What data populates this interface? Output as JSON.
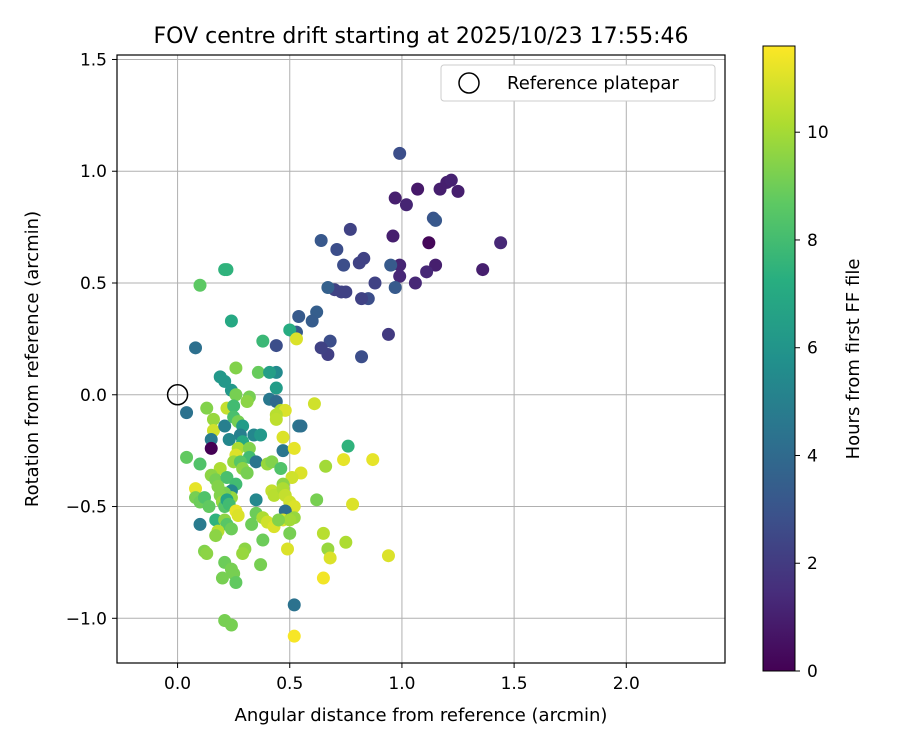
{
  "chart_data": {
    "type": "scatter",
    "title": "FOV centre drift starting at 2025/10/23 17:55:46",
    "xlabel": "Angular distance from reference (arcmin)",
    "ylabel": "Rotation from reference (arcmin)",
    "xlim": [
      -0.27,
      2.44
    ],
    "ylim": [
      -1.2,
      1.52
    ],
    "xticks": [
      0.0,
      0.5,
      1.0,
      1.5,
      2.0
    ],
    "xtick_labels": [
      "0.0",
      "0.5",
      "1.0",
      "1.5",
      "2.0"
    ],
    "yticks": [
      -1.0,
      -0.5,
      0.0,
      0.5,
      1.0,
      1.5
    ],
    "ytick_labels": [
      "−1.0",
      "−0.5",
      "0.0",
      "0.5",
      "1.0",
      "1.5"
    ],
    "grid": true,
    "legend": {
      "position": "top-right",
      "label": "Reference platepar"
    },
    "reference_point": {
      "x": 0.0,
      "y": 0.0
    },
    "colorbar": {
      "label": "Hours from first FF file",
      "colormap": "viridis",
      "range": [
        0,
        11.6
      ],
      "ticks": [
        0,
        2,
        4,
        6,
        8,
        10
      ],
      "tick_labels": [
        "0",
        "2",
        "4",
        "6",
        "8",
        "10"
      ]
    },
    "points": [
      [
        0.99,
        1.08,
        2.8
      ],
      [
        0.97,
        0.88,
        1.0
      ],
      [
        1.02,
        0.85,
        1.2
      ],
      [
        1.07,
        0.92,
        0.8
      ],
      [
        1.14,
        0.79,
        3.1
      ],
      [
        1.15,
        0.78,
        3.2
      ],
      [
        1.17,
        0.92,
        1.0
      ],
      [
        1.2,
        0.95,
        1.0
      ],
      [
        1.22,
        0.96,
        1.1
      ],
      [
        1.25,
        0.91,
        1.0
      ],
      [
        1.44,
        0.68,
        1.3
      ],
      [
        1.36,
        0.56,
        1.0
      ],
      [
        1.15,
        0.58,
        1.0
      ],
      [
        1.11,
        0.55,
        1.3
      ],
      [
        1.06,
        0.5,
        1.3
      ],
      [
        1.12,
        0.68,
        0.2
      ],
      [
        0.96,
        0.71,
        1.0
      ],
      [
        0.99,
        0.58,
        1.2
      ],
      [
        0.99,
        0.53,
        1.3
      ],
      [
        0.97,
        0.48,
        3.3
      ],
      [
        0.95,
        0.58,
        3.3
      ],
      [
        0.94,
        0.27,
        2.0
      ],
      [
        0.88,
        0.5,
        2.3
      ],
      [
        0.85,
        0.43,
        2.8
      ],
      [
        0.83,
        0.61,
        2.3
      ],
      [
        0.81,
        0.59,
        2.3
      ],
      [
        0.82,
        0.43,
        2.3
      ],
      [
        0.82,
        0.17,
        2.8
      ],
      [
        0.77,
        0.74,
        2.3
      ],
      [
        0.75,
        0.46,
        2.3
      ],
      [
        0.73,
        0.46,
        2.3
      ],
      [
        0.71,
        0.65,
        2.8
      ],
      [
        0.74,
        0.58,
        2.8
      ],
      [
        0.7,
        0.47,
        2.3
      ],
      [
        0.67,
        0.48,
        3.6
      ],
      [
        0.68,
        0.24,
        2.8
      ],
      [
        0.67,
        0.18,
        2.2
      ],
      [
        0.64,
        0.69,
        3.2
      ],
      [
        0.64,
        0.21,
        2.3
      ],
      [
        0.62,
        0.37,
        3.5
      ],
      [
        0.6,
        0.33,
        3.4
      ],
      [
        0.54,
        0.35,
        3.3
      ],
      [
        0.53,
        0.28,
        3.3
      ],
      [
        0.44,
        0.22,
        2.8
      ],
      [
        0.5,
        0.29,
        7.2
      ],
      [
        0.53,
        0.25,
        11.0
      ],
      [
        0.21,
        0.56,
        7.5
      ],
      [
        0.22,
        0.56,
        7.5
      ],
      [
        0.1,
        0.49,
        8.7
      ],
      [
        0.24,
        0.33,
        7.0
      ],
      [
        0.08,
        0.21,
        4.3
      ],
      [
        0.38,
        0.24,
        7.8
      ],
      [
        0.36,
        0.1,
        8.9
      ],
      [
        0.44,
        0.1,
        5.5
      ],
      [
        0.41,
        0.1,
        6.5
      ],
      [
        0.26,
        0.12,
        9.4
      ],
      [
        0.19,
        0.08,
        6.2
      ],
      [
        0.21,
        0.06,
        6.2
      ],
      [
        0.24,
        0.02,
        6.2
      ],
      [
        0.26,
        0.0,
        9.2
      ],
      [
        0.32,
        -0.01,
        9.2
      ],
      [
        0.31,
        -0.03,
        9.6
      ],
      [
        0.44,
        0.03,
        6.4
      ],
      [
        0.41,
        -0.02,
        4.7
      ],
      [
        0.44,
        -0.03,
        4.0
      ],
      [
        0.46,
        -0.07,
        10.3
      ],
      [
        0.48,
        -0.07,
        11.0
      ],
      [
        0.44,
        -0.09,
        10.4
      ],
      [
        0.44,
        -0.11,
        10.5
      ],
      [
        0.54,
        -0.14,
        4.6
      ],
      [
        0.55,
        -0.14,
        4.3
      ],
      [
        0.61,
        -0.04,
        10.8
      ],
      [
        0.04,
        -0.08,
        4.4
      ],
      [
        0.13,
        -0.06,
        9.4
      ],
      [
        0.22,
        -0.06,
        10.6
      ],
      [
        0.25,
        -0.05,
        8.0
      ],
      [
        0.16,
        -0.11,
        9.8
      ],
      [
        0.16,
        -0.16,
        10.8
      ],
      [
        0.21,
        -0.14,
        5.0
      ],
      [
        0.25,
        -0.1,
        8.2
      ],
      [
        0.27,
        -0.12,
        9.2
      ],
      [
        0.29,
        -0.14,
        6.4
      ],
      [
        0.28,
        -0.18,
        5.0
      ],
      [
        0.29,
        -0.21,
        7.0
      ],
      [
        0.34,
        -0.18,
        5.4
      ],
      [
        0.37,
        -0.18,
        6.2
      ],
      [
        0.47,
        -0.19,
        11.0
      ],
      [
        0.15,
        -0.2,
        4.8
      ],
      [
        0.15,
        -0.24,
        0.0
      ],
      [
        0.23,
        -0.2,
        5.4
      ],
      [
        0.27,
        -0.24,
        10.2
      ],
      [
        0.26,
        -0.27,
        11.0
      ],
      [
        0.32,
        -0.24,
        9.4
      ],
      [
        0.32,
        -0.28,
        8.0
      ],
      [
        0.47,
        -0.25,
        4.6
      ],
      [
        0.52,
        -0.24,
        11.2
      ],
      [
        0.35,
        -0.3,
        4.5
      ],
      [
        0.04,
        -0.28,
        8.8
      ],
      [
        0.1,
        -0.31,
        8.4
      ],
      [
        0.19,
        -0.33,
        10.2
      ],
      [
        0.25,
        -0.3,
        9.8
      ],
      [
        0.28,
        -0.3,
        8.6
      ],
      [
        0.29,
        -0.33,
        9.6
      ],
      [
        0.31,
        -0.35,
        9.2
      ],
      [
        0.4,
        -0.31,
        9.8
      ],
      [
        0.42,
        -0.3,
        9.4
      ],
      [
        0.46,
        -0.33,
        8.4
      ],
      [
        0.55,
        -0.35,
        11.0
      ],
      [
        0.51,
        -0.37,
        10.8
      ],
      [
        0.66,
        -0.32,
        10.0
      ],
      [
        0.74,
        -0.29,
        11.2
      ],
      [
        0.87,
        -0.29,
        11.2
      ],
      [
        0.76,
        -0.23,
        7.5
      ],
      [
        0.15,
        -0.36,
        9.6
      ],
      [
        0.17,
        -0.38,
        9.2
      ],
      [
        0.22,
        -0.37,
        8.2
      ],
      [
        0.26,
        -0.4,
        8.0
      ],
      [
        0.24,
        -0.43,
        5.4
      ],
      [
        0.24,
        -0.46,
        9.8
      ],
      [
        0.21,
        -0.44,
        9.2
      ],
      [
        0.18,
        -0.41,
        9.4
      ],
      [
        0.08,
        -0.42,
        11.2
      ],
      [
        0.08,
        -0.46,
        9.2
      ],
      [
        0.1,
        -0.48,
        9.0
      ],
      [
        0.12,
        -0.46,
        8.4
      ],
      [
        0.14,
        -0.5,
        8.8
      ],
      [
        0.19,
        -0.45,
        9.4
      ],
      [
        0.2,
        -0.48,
        9.8
      ],
      [
        0.21,
        -0.5,
        8.5
      ],
      [
        0.22,
        -0.47,
        6.8
      ],
      [
        0.23,
        -0.49,
        8.0
      ],
      [
        0.26,
        -0.52,
        11.2
      ],
      [
        0.27,
        -0.54,
        11.0
      ],
      [
        0.35,
        -0.47,
        5.4
      ],
      [
        0.35,
        -0.53,
        9.0
      ],
      [
        0.38,
        -0.55,
        10.2
      ],
      [
        0.42,
        -0.43,
        10.6
      ],
      [
        0.43,
        -0.45,
        10.4
      ],
      [
        0.47,
        -0.4,
        9.6
      ],
      [
        0.47,
        -0.42,
        10.2
      ],
      [
        0.48,
        -0.45,
        10.6
      ],
      [
        0.5,
        -0.48,
        10.8
      ],
      [
        0.52,
        -0.5,
        11.0
      ],
      [
        0.48,
        -0.52,
        4.2
      ],
      [
        0.52,
        -0.55,
        9.8
      ],
      [
        0.62,
        -0.47,
        9.2
      ],
      [
        0.78,
        -0.49,
        11.0
      ],
      [
        0.1,
        -0.58,
        4.8
      ],
      [
        0.17,
        -0.56,
        7.5
      ],
      [
        0.21,
        -0.56,
        9.6
      ],
      [
        0.22,
        -0.58,
        8.6
      ],
      [
        0.24,
        -0.6,
        9.0
      ],
      [
        0.18,
        -0.61,
        10.4
      ],
      [
        0.17,
        -0.63,
        9.6
      ],
      [
        0.33,
        -0.58,
        9.0
      ],
      [
        0.4,
        -0.57,
        10.8
      ],
      [
        0.43,
        -0.59,
        11.0
      ],
      [
        0.47,
        -0.56,
        11.0
      ],
      [
        0.5,
        -0.56,
        10.0
      ],
      [
        0.5,
        -0.62,
        9.2
      ],
      [
        0.49,
        -0.69,
        11.0
      ],
      [
        0.45,
        -0.56,
        9.4
      ],
      [
        0.38,
        -0.65,
        9.0
      ],
      [
        0.3,
        -0.69,
        9.6
      ],
      [
        0.29,
        -0.71,
        9.8
      ],
      [
        0.12,
        -0.7,
        9.4
      ],
      [
        0.13,
        -0.71,
        9.6
      ],
      [
        0.21,
        -0.75,
        9.0
      ],
      [
        0.24,
        -0.78,
        9.2
      ],
      [
        0.25,
        -0.8,
        9.2
      ],
      [
        0.37,
        -0.76,
        9.2
      ],
      [
        0.2,
        -0.82,
        9.2
      ],
      [
        0.26,
        -0.84,
        8.8
      ],
      [
        0.65,
        -0.62,
        10.4
      ],
      [
        0.67,
        -0.69,
        9.8
      ],
      [
        0.68,
        -0.73,
        11.0
      ],
      [
        0.75,
        -0.66,
        10.2
      ],
      [
        0.94,
        -0.72,
        11.0
      ],
      [
        0.65,
        -0.82,
        11.4
      ],
      [
        0.21,
        -1.01,
        9.2
      ],
      [
        0.24,
        -1.03,
        9.2
      ],
      [
        0.52,
        -0.94,
        4.4
      ],
      [
        0.52,
        -1.08,
        11.5
      ]
    ]
  }
}
